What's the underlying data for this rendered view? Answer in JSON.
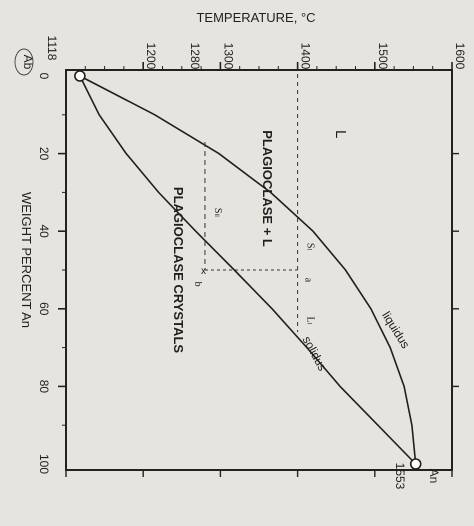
{
  "chart_data": {
    "type": "line",
    "title": "",
    "xlabel": "WEIGHT PERCENT An",
    "ylabel": "TEMPERATURE, °C",
    "xlim": [
      0,
      100
    ],
    "ylim": [
      1100,
      1600
    ],
    "x_ticks": [
      "0",
      "20",
      "40",
      "60",
      "80",
      "100"
    ],
    "y_ticks": [
      "1100",
      "1200",
      "1300",
      "1400",
      "1500",
      "1600"
    ],
    "end_labels": {
      "left": "Ab",
      "right": "An"
    },
    "melting_points": {
      "Ab": "1118",
      "An": "1553"
    },
    "series": [
      {
        "name": "liquidus",
        "x": [
          0,
          10,
          20,
          30,
          40,
          50,
          60,
          70,
          80,
          90,
          100
        ],
        "y": [
          1118,
          1215,
          1298,
          1365,
          1420,
          1462,
          1495,
          1520,
          1538,
          1548,
          1553
        ]
      },
      {
        "name": "solidus",
        "x": [
          0,
          10,
          20,
          30,
          40,
          50,
          60,
          70,
          80,
          90,
          100
        ],
        "y": [
          1118,
          1143,
          1178,
          1220,
          1268,
          1318,
          1367,
          1412,
          1455,
          1504,
          1553
        ]
      }
    ],
    "field_labels": [
      "L",
      "PLAGIOCLASE + L",
      "PLAGIOCLASE CRYSTALS"
    ],
    "annotations": {
      "upper_guide": {
        "temp_label": "1400",
        "markers": [
          "Sₗ",
          "Lₗ"
        ],
        "point": "a"
      },
      "lower_guide": {
        "temp_label": "1280",
        "marker": "Sₗₗ",
        "point": "b"
      }
    },
    "grid": false
  }
}
